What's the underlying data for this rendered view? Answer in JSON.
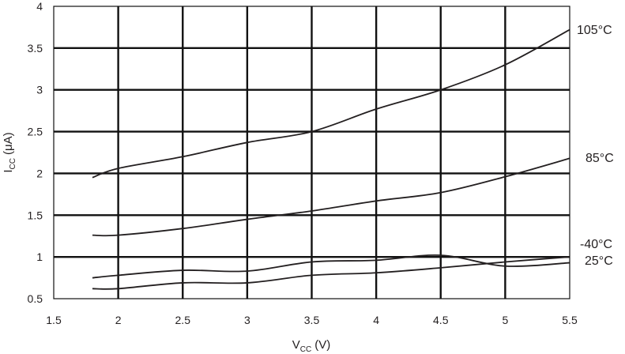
{
  "chart_data": {
    "type": "line",
    "xlabel": "V",
    "xlabel_sub": "CC",
    "xlabel_unit": "(V)",
    "ylabel": "I",
    "ylabel_sub": "CC",
    "ylabel_unit": "(μA)",
    "xlim": [
      1.5,
      5.5
    ],
    "ylim": [
      0.5,
      4
    ],
    "xticks": [
      "1.5",
      "2",
      "2.5",
      "3",
      "3.5",
      "4",
      "4.5",
      "5",
      "5.5"
    ],
    "yticks": [
      "0.5",
      "1",
      "1.5",
      "2",
      "2.5",
      "3",
      "3.5",
      "4"
    ],
    "grid": true,
    "line_color": "#231f20",
    "series": [
      {
        "name": "105°C",
        "x": [
          1.8,
          2.0,
          2.5,
          3.0,
          3.5,
          4.0,
          4.5,
          5.0,
          5.5
        ],
        "y": [
          1.95,
          2.06,
          2.2,
          2.37,
          2.5,
          2.77,
          3.0,
          3.3,
          3.72
        ]
      },
      {
        "name": "85°C",
        "x": [
          1.8,
          2.0,
          2.5,
          3.0,
          3.5,
          4.0,
          4.5,
          5.0,
          5.5
        ],
        "y": [
          1.26,
          1.26,
          1.34,
          1.45,
          1.55,
          1.67,
          1.77,
          1.96,
          2.18
        ]
      },
      {
        "name": "-40°C",
        "x": [
          1.8,
          2.0,
          2.5,
          3.0,
          3.5,
          4.0,
          4.5,
          5.0,
          5.5
        ],
        "y": [
          0.75,
          0.78,
          0.84,
          0.83,
          0.94,
          0.96,
          1.02,
          0.89,
          0.93
        ]
      },
      {
        "name": "25°C",
        "x": [
          1.8,
          2.0,
          2.5,
          3.0,
          3.5,
          4.0,
          4.5,
          5.0,
          5.5
        ],
        "y": [
          0.62,
          0.62,
          0.69,
          0.69,
          0.78,
          0.81,
          0.87,
          0.94,
          1.0
        ]
      }
    ]
  }
}
